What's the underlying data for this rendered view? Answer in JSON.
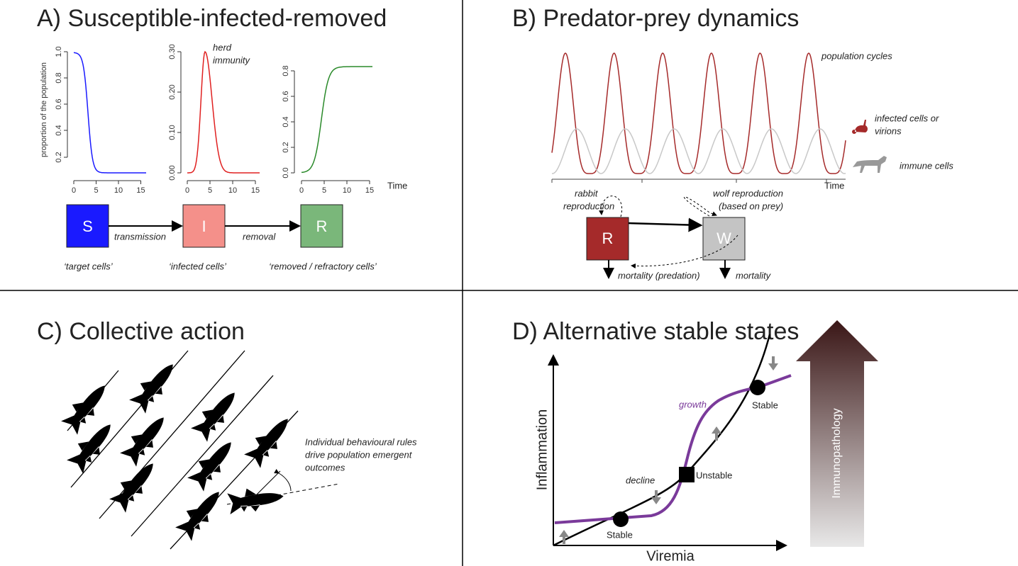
{
  "panel_a": {
    "title": "A) Susceptible-infected-removed",
    "y_axis_label": "proportion of the population",
    "x_axis_label": "Time",
    "plots": [
      {
        "yticks": [
          "0.2",
          "0.4",
          "0.6",
          "0.8",
          "1.0"
        ],
        "xticks": [
          "0",
          "5",
          "10",
          "15"
        ]
      },
      {
        "yticks": [
          "0.00",
          "0.10",
          "0.20",
          "0.30"
        ],
        "xticks": [
          "0",
          "5",
          "10",
          "15"
        ],
        "annotation_lines": [
          "herd",
          "immunity"
        ]
      },
      {
        "yticks": [
          "0.0",
          "0.2",
          "0.4",
          "0.6",
          "0.8"
        ],
        "xticks": [
          "0",
          "5",
          "10",
          "15"
        ]
      }
    ],
    "boxes": [
      "S",
      "I",
      "R"
    ],
    "edges": [
      "transmission",
      "removal"
    ],
    "captions": [
      "‘target cells’",
      "‘infected cells’",
      "‘removed / refractory cells’"
    ]
  },
  "panel_b": {
    "title": "B) Predator-prey dynamics",
    "annotation": "population cycles",
    "x_axis_label": "Time",
    "legend": [
      {
        "lines": [
          "infected cells or",
          "virions"
        ]
      },
      {
        "lines": [
          "immune cells"
        ]
      }
    ],
    "boxes": [
      "R",
      "W"
    ],
    "rabbit_reproduction": [
      "rabbit",
      "reproduction"
    ],
    "wolf_reproduction": [
      "wolf reproduction",
      "(based on prey)"
    ],
    "mortality_prey": "mortality (predation)",
    "mortality_predator": "mortality"
  },
  "panel_c": {
    "title": "C) Collective action",
    "caption_lines": [
      "Individual behavioural rules",
      "drive population emergent",
      "outcomes"
    ]
  },
  "panel_d": {
    "title": "D) Alternative stable states",
    "y_axis_label": "Inflammation",
    "x_axis_label": "Viremia",
    "growth": "growth",
    "decline": "decline",
    "stable_low": "Stable",
    "unstable": "Unstable",
    "stable_high": "Stable",
    "arrow_label": "Immunopathology"
  }
}
